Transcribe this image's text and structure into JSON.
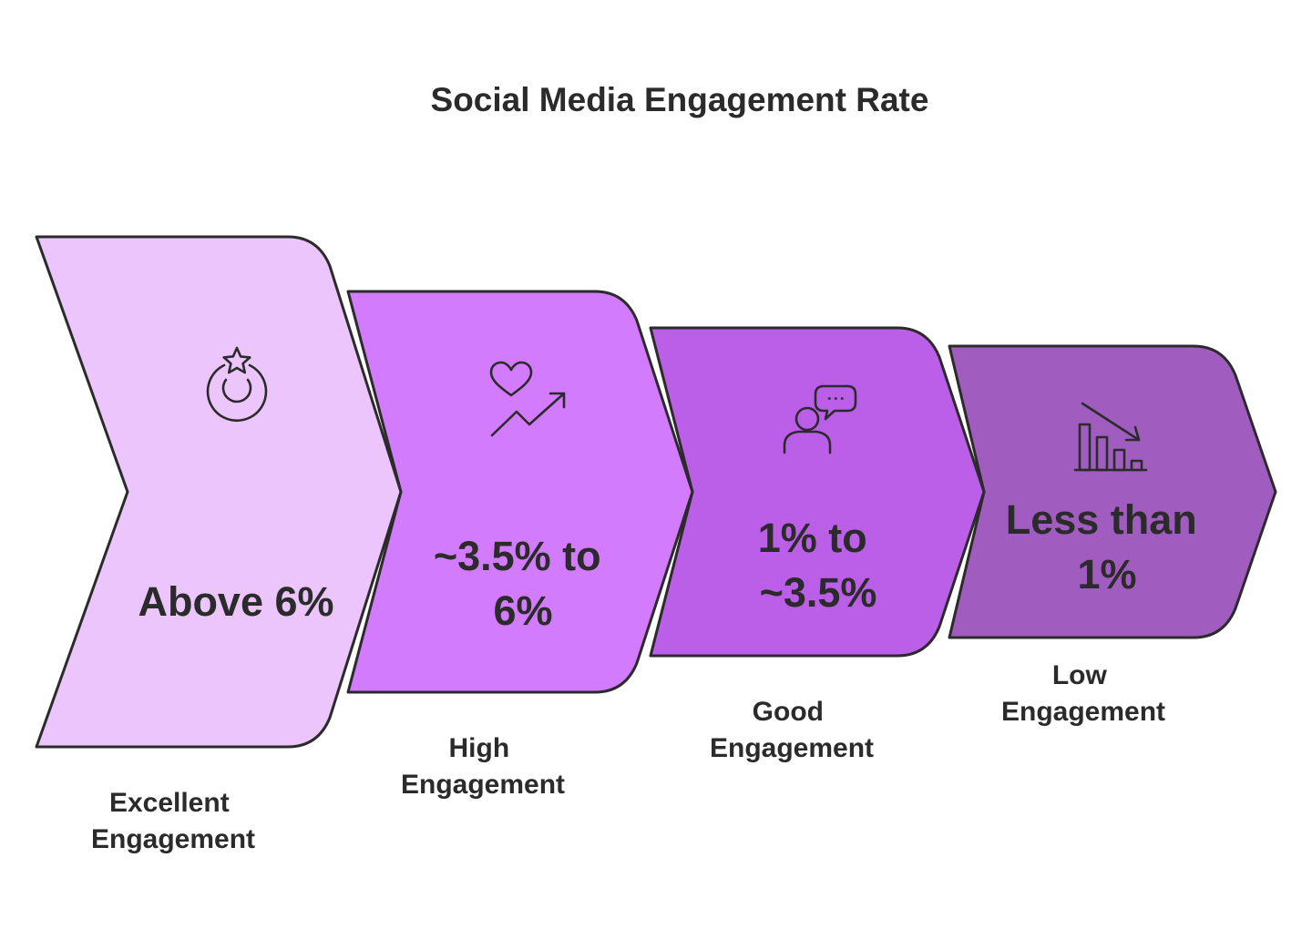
{
  "title": "Social Media Engagement Rate",
  "colors": {
    "excellent": "#ebc5fc",
    "high": "#d27bfc",
    "good": "#bb5ee8",
    "low": "#a05dbf",
    "outline": "#2b2b2b"
  },
  "stages": [
    {
      "value_lines": [
        "Above 6%"
      ],
      "label_lines": [
        "Excellent",
        "Engagement"
      ],
      "icon": "medal-star-icon"
    },
    {
      "value_lines": [
        "~3.5% to",
        "6%"
      ],
      "label_lines": [
        "High",
        "Engagement"
      ],
      "icon": "heart-trend-up-icon"
    },
    {
      "value_lines": [
        "1% to",
        "~3.5%"
      ],
      "label_lines": [
        "Good",
        "Engagement"
      ],
      "icon": "person-speech-bubble-icon"
    },
    {
      "value_lines": [
        "Less than",
        "1%"
      ],
      "label_lines": [
        "Low",
        "Engagement"
      ],
      "icon": "bar-chart-down-icon"
    }
  ]
}
